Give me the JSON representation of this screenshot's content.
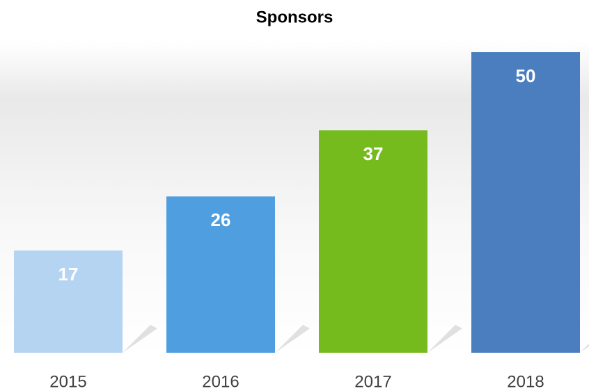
{
  "chart_data": {
    "type": "bar",
    "title": "Sponsors",
    "categories": [
      "2015",
      "2016",
      "2017",
      "2018"
    ],
    "values": [
      17,
      26,
      37,
      50
    ],
    "colors": [
      "#b4d4f1",
      "#4e9ee0",
      "#76bb1e",
      "#4a7ebf"
    ]
  }
}
